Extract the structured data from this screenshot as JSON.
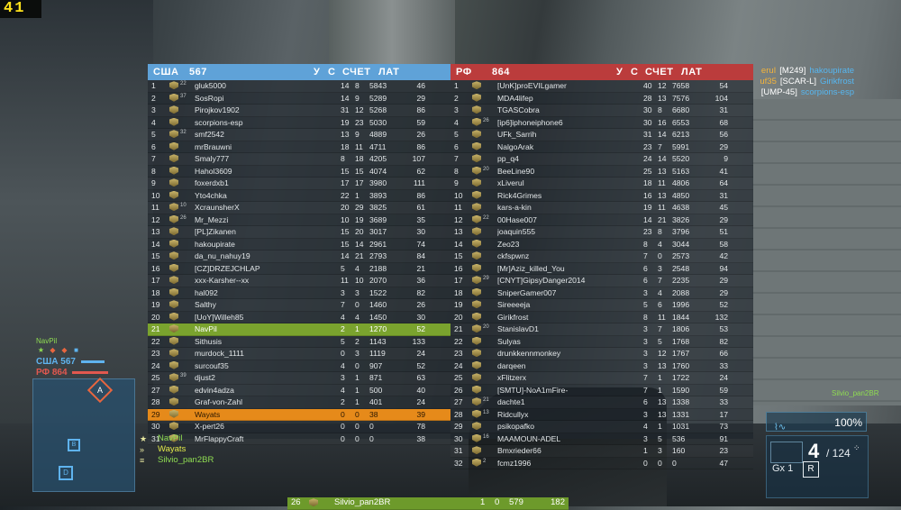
{
  "fps": "41",
  "left_team": {
    "name": "США",
    "score": "567",
    "headers": {
      "kills": "У",
      "deaths": "С",
      "score": "СЧЕТ",
      "ping": "ЛАТ"
    },
    "rows": [
      {
        "n": "1",
        "rank": "22",
        "name": "gluk5000",
        "k": "14",
        "d": "8",
        "s": "5843",
        "p": "46"
      },
      {
        "n": "2",
        "rank": "37",
        "name": "SosRopi",
        "k": "14",
        "d": "9",
        "s": "5289",
        "p": "29"
      },
      {
        "n": "3",
        "rank": "",
        "name": "Pirojkov1902",
        "k": "31",
        "d": "12",
        "s": "5268",
        "p": "86"
      },
      {
        "n": "4",
        "rank": "",
        "name": "scorpions-esp",
        "k": "19",
        "d": "23",
        "s": "5030",
        "p": "59"
      },
      {
        "n": "5",
        "rank": "32",
        "name": "smf2542",
        "k": "13",
        "d": "9",
        "s": "4889",
        "p": "26"
      },
      {
        "n": "6",
        "rank": "",
        "name": "mrBrauwni",
        "k": "18",
        "d": "11",
        "s": "4711",
        "p": "86"
      },
      {
        "n": "7",
        "rank": "",
        "name": "Smaly777",
        "k": "8",
        "d": "18",
        "s": "4205",
        "p": "107"
      },
      {
        "n": "8",
        "rank": "",
        "name": "Hahol3609",
        "k": "15",
        "d": "15",
        "s": "4074",
        "p": "62"
      },
      {
        "n": "9",
        "rank": "",
        "name": "foxerdxb1",
        "k": "17",
        "d": "17",
        "s": "3980",
        "p": "111"
      },
      {
        "n": "10",
        "rank": "",
        "name": "Yto4chka",
        "k": "22",
        "d": "1",
        "s": "3893",
        "p": "86"
      },
      {
        "n": "11",
        "rank": "10",
        "name": "XcraunsherX",
        "k": "20",
        "d": "29",
        "s": "3825",
        "p": "61"
      },
      {
        "n": "12",
        "rank": "26",
        "name": "Mr_Mezzi",
        "k": "10",
        "d": "19",
        "s": "3689",
        "p": "35"
      },
      {
        "n": "13",
        "rank": "",
        "name": "[PL]Zikanen",
        "k": "15",
        "d": "20",
        "s": "3017",
        "p": "30"
      },
      {
        "n": "14",
        "rank": "",
        "name": "hakoupirate",
        "k": "15",
        "d": "14",
        "s": "2961",
        "p": "74"
      },
      {
        "n": "15",
        "rank": "",
        "name": "da_nu_nahuy19",
        "k": "14",
        "d": "21",
        "s": "2793",
        "p": "84"
      },
      {
        "n": "16",
        "rank": "",
        "name": "[CZ]DRZEJCHLAP",
        "k": "5",
        "d": "4",
        "s": "2188",
        "p": "21"
      },
      {
        "n": "17",
        "rank": "",
        "name": "xxx-Karsher--xx",
        "k": "11",
        "d": "10",
        "s": "2070",
        "p": "36"
      },
      {
        "n": "18",
        "rank": "",
        "name": "hal092",
        "k": "3",
        "d": "3",
        "s": "1522",
        "p": "82"
      },
      {
        "n": "19",
        "rank": "",
        "name": "Salthy",
        "k": "7",
        "d": "0",
        "s": "1460",
        "p": "26"
      },
      {
        "n": "20",
        "rank": "",
        "name": "[UoY]Willeh85",
        "k": "4",
        "d": "4",
        "s": "1450",
        "p": "30"
      },
      {
        "n": "21",
        "rank": "",
        "name": "NavPil",
        "k": "2",
        "d": "1",
        "s": "1270",
        "p": "52",
        "hl": "self"
      },
      {
        "n": "22",
        "rank": "",
        "name": "Sithusis",
        "k": "5",
        "d": "2",
        "s": "1143",
        "p": "133"
      },
      {
        "n": "23",
        "rank": "",
        "name": "murdock_1111",
        "k": "0",
        "d": "3",
        "s": "1119",
        "p": "24"
      },
      {
        "n": "24",
        "rank": "",
        "name": "surcouf35",
        "k": "4",
        "d": "0",
        "s": "907",
        "p": "52"
      },
      {
        "n": "25",
        "rank": "39",
        "name": "djust2",
        "k": "3",
        "d": "1",
        "s": "871",
        "p": "63"
      },
      {
        "n": "26",
        "rank": "",
        "name": "Silvio_pan2BR",
        "k": "1",
        "d": "0",
        "s": "579",
        "p": "182",
        "hl": "squad"
      },
      {
        "n": "27",
        "rank": "",
        "name": "edvin4adza",
        "k": "4",
        "d": "1",
        "s": "500",
        "p": "40"
      },
      {
        "n": "28",
        "rank": "",
        "name": "Graf-von-Zahl",
        "k": "2",
        "d": "1",
        "s": "401",
        "p": "24"
      },
      {
        "n": "29",
        "rank": "",
        "name": "Wayats",
        "k": "0",
        "d": "0",
        "s": "38",
        "p": "39",
        "hl": "orange"
      },
      {
        "n": "30",
        "rank": "",
        "name": "X-pert26",
        "k": "0",
        "d": "0",
        "s": "0",
        "p": "78"
      },
      {
        "n": "31",
        "rank": "",
        "name": "MrFlappyCraft",
        "k": "0",
        "d": "0",
        "s": "0",
        "p": "38"
      }
    ]
  },
  "right_team": {
    "name": "РФ",
    "score": "864",
    "headers": {
      "kills": "У",
      "deaths": "С",
      "score": "СЧЕТ",
      "ping": "ЛАТ"
    },
    "rows": [
      {
        "n": "1",
        "rank": "",
        "name": "[UnK]proEVILgamer",
        "k": "40",
        "d": "12",
        "s": "7658",
        "p": "54"
      },
      {
        "n": "2",
        "rank": "",
        "name": "MDA4lifep",
        "k": "28",
        "d": "13",
        "s": "7576",
        "p": "104"
      },
      {
        "n": "3",
        "rank": "",
        "name": "TGASCobra",
        "k": "30",
        "d": "8",
        "s": "6680",
        "p": "31"
      },
      {
        "n": "4",
        "rank": "26",
        "name": "[ip6]iphoneiphone6",
        "k": "30",
        "d": "16",
        "s": "6553",
        "p": "68"
      },
      {
        "n": "5",
        "rank": "",
        "name": "UFk_Sarrih",
        "k": "31",
        "d": "14",
        "s": "6213",
        "p": "56"
      },
      {
        "n": "6",
        "rank": "",
        "name": "NalgoArak",
        "k": "23",
        "d": "7",
        "s": "5991",
        "p": "29"
      },
      {
        "n": "7",
        "rank": "",
        "name": "pp_q4",
        "k": "24",
        "d": "14",
        "s": "5520",
        "p": "9"
      },
      {
        "n": "8",
        "rank": "20",
        "name": "BeeLine90",
        "k": "25",
        "d": "13",
        "s": "5163",
        "p": "41"
      },
      {
        "n": "9",
        "rank": "",
        "name": "xLiverul",
        "k": "18",
        "d": "11",
        "s": "4806",
        "p": "64"
      },
      {
        "n": "10",
        "rank": "",
        "name": "Rick4Grimes",
        "k": "16",
        "d": "13",
        "s": "4850",
        "p": "31"
      },
      {
        "n": "11",
        "rank": "",
        "name": "kars-a-kin",
        "k": "19",
        "d": "11",
        "s": "4638",
        "p": "45"
      },
      {
        "n": "12",
        "rank": "22",
        "name": "00Hase007",
        "k": "14",
        "d": "21",
        "s": "3826",
        "p": "29"
      },
      {
        "n": "13",
        "rank": "",
        "name": "joaquin555",
        "k": "23",
        "d": "8",
        "s": "3796",
        "p": "51"
      },
      {
        "n": "14",
        "rank": "",
        "name": "Zeo23",
        "k": "8",
        "d": "4",
        "s": "3044",
        "p": "58"
      },
      {
        "n": "15",
        "rank": "",
        "name": "ckfspwnz",
        "k": "7",
        "d": "0",
        "s": "2573",
        "p": "42"
      },
      {
        "n": "16",
        "rank": "",
        "name": "[Mr]Aziz_killed_You",
        "k": "6",
        "d": "3",
        "s": "2548",
        "p": "94"
      },
      {
        "n": "17",
        "rank": "29",
        "name": "[CNYT]GipsyDanger2014",
        "k": "6",
        "d": "7",
        "s": "2235",
        "p": "29"
      },
      {
        "n": "18",
        "rank": "",
        "name": "SniperGamer007",
        "k": "3",
        "d": "4",
        "s": "2088",
        "p": "29"
      },
      {
        "n": "19",
        "rank": "",
        "name": "Sireeeeja",
        "k": "5",
        "d": "6",
        "s": "1996",
        "p": "52"
      },
      {
        "n": "20",
        "rank": "",
        "name": "Girikfrost",
        "k": "8",
        "d": "11",
        "s": "1844",
        "p": "132"
      },
      {
        "n": "21",
        "rank": "20",
        "name": "StanislavD1",
        "k": "3",
        "d": "7",
        "s": "1806",
        "p": "53"
      },
      {
        "n": "22",
        "rank": "",
        "name": "Sulyas",
        "k": "3",
        "d": "5",
        "s": "1768",
        "p": "82"
      },
      {
        "n": "23",
        "rank": "",
        "name": "drunkkennmonkey",
        "k": "3",
        "d": "12",
        "s": "1767",
        "p": "66"
      },
      {
        "n": "24",
        "rank": "",
        "name": "darqeen",
        "k": "3",
        "d": "13",
        "s": "1760",
        "p": "33"
      },
      {
        "n": "25",
        "rank": "",
        "name": "xFlitzerx",
        "k": "7",
        "d": "1",
        "s": "1722",
        "p": "24"
      },
      {
        "n": "26",
        "rank": "",
        "name": "[SMTU]-NoA1mFire-",
        "k": "7",
        "d": "1",
        "s": "1590",
        "p": "59"
      },
      {
        "n": "27",
        "rank": "21",
        "name": "dachte1",
        "k": "6",
        "d": "13",
        "s": "1338",
        "p": "33"
      },
      {
        "n": "28",
        "rank": "13",
        "name": "Ridcullyx",
        "k": "3",
        "d": "13",
        "s": "1331",
        "p": "17"
      },
      {
        "n": "29",
        "rank": "",
        "name": "psikopafko",
        "k": "4",
        "d": "1",
        "s": "1031",
        "p": "73"
      },
      {
        "n": "30",
        "rank": "16",
        "name": "MAAMOUN-ADEL",
        "k": "3",
        "d": "5",
        "s": "536",
        "p": "91"
      },
      {
        "n": "31",
        "rank": "",
        "name": "Bmxrieder66",
        "k": "1",
        "d": "3",
        "s": "160",
        "p": "23"
      },
      {
        "n": "32",
        "rank": "2",
        "name": "fcmz1996",
        "k": "0",
        "d": "0",
        "s": "0",
        "p": "47"
      }
    ]
  },
  "killfeed": [
    {
      "killer": "eruI",
      "weapon": "[M249]",
      "victim": "hakoupirate"
    },
    {
      "killer": "uf35",
      "weapon": "[SCAR-L]",
      "victim": "Girikfrost"
    },
    {
      "killer": "",
      "weapon": "[UMP-45]",
      "victim": "scorpions-esp"
    }
  ],
  "minimap": {
    "player": "NavPil",
    "us_label": "США",
    "us_score": "567",
    "us_fill": 0.66,
    "ru_label": "РФ",
    "ru_score": "864",
    "ru_fill": 1.0,
    "flags": [
      "A",
      "B",
      "D"
    ],
    "colors": {
      "us": "#5fb3ee",
      "ru": "#e2584f",
      "squad": "#8fdc52"
    }
  },
  "squad_list": [
    {
      "name": "NavPil",
      "icon": "star-icon",
      "color": "#8fdc52"
    },
    {
      "name": "Wayats",
      "icon": "chevron-rank-icon",
      "color": "#e3ea4a"
    },
    {
      "name": "Silvio_pan2BR",
      "icon": "bars-rank-icon",
      "color": "#8fdc52"
    }
  ],
  "hud": {
    "teammate_label": "Silvio_pan2BR",
    "health": "100%",
    "mag": "4",
    "reserve": "/ 124",
    "grenades": "Gx 1",
    "fire_mode": "R"
  }
}
